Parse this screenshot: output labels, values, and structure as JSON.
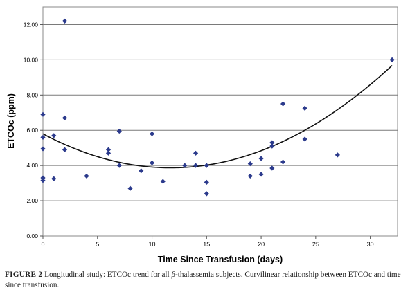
{
  "chart_data": {
    "type": "scatter",
    "xlabel": "Time Since Transfusion (days)",
    "ylabel": "ETCOc (ppm)",
    "xlim": [
      0,
      32.5
    ],
    "ylim": [
      0,
      13
    ],
    "xticks": [
      0,
      5,
      10,
      15,
      20,
      25,
      30
    ],
    "yticks": [
      0,
      2,
      4,
      6,
      8,
      10,
      12
    ],
    "xtick_labels": [
      "0",
      "5",
      "10",
      "15",
      "20",
      "25",
      "30"
    ],
    "ytick_labels": [
      "0.00",
      "2.00",
      "4.00",
      "6.00",
      "8.00",
      "10.00",
      "12.00"
    ],
    "grid": "horizontal",
    "marker": "diamond",
    "marker_color": "#2b3a8c",
    "points": [
      {
        "x": 0,
        "y": 6.9
      },
      {
        "x": 0,
        "y": 5.6
      },
      {
        "x": 0,
        "y": 4.95
      },
      {
        "x": 0,
        "y": 3.3
      },
      {
        "x": 0,
        "y": 3.15
      },
      {
        "x": 1,
        "y": 5.7
      },
      {
        "x": 1,
        "y": 3.25
      },
      {
        "x": 2,
        "y": 12.2
      },
      {
        "x": 2,
        "y": 6.7
      },
      {
        "x": 2,
        "y": 4.9
      },
      {
        "x": 4,
        "y": 3.4
      },
      {
        "x": 6,
        "y": 4.9
      },
      {
        "x": 6,
        "y": 4.7
      },
      {
        "x": 7,
        "y": 5.95
      },
      {
        "x": 7,
        "y": 4.0
      },
      {
        "x": 8,
        "y": 2.7
      },
      {
        "x": 9,
        "y": 3.7
      },
      {
        "x": 10,
        "y": 5.8
      },
      {
        "x": 10,
        "y": 4.15
      },
      {
        "x": 11,
        "y": 3.1
      },
      {
        "x": 13,
        "y": 4.0
      },
      {
        "x": 14,
        "y": 4.7
      },
      {
        "x": 14,
        "y": 4.0
      },
      {
        "x": 15,
        "y": 4.0
      },
      {
        "x": 15,
        "y": 3.05
      },
      {
        "x": 15,
        "y": 2.4
      },
      {
        "x": 19,
        "y": 4.1
      },
      {
        "x": 19,
        "y": 3.4
      },
      {
        "x": 20,
        "y": 4.4
      },
      {
        "x": 20,
        "y": 3.5
      },
      {
        "x": 21,
        "y": 5.3
      },
      {
        "x": 21,
        "y": 5.1
      },
      {
        "x": 21,
        "y": 3.85
      },
      {
        "x": 22,
        "y": 7.5
      },
      {
        "x": 22,
        "y": 4.2
      },
      {
        "x": 24,
        "y": 7.25
      },
      {
        "x": 24,
        "y": 5.5
      },
      {
        "x": 27,
        "y": 4.6
      },
      {
        "x": 32,
        "y": 10.0
      }
    ],
    "trendline": {
      "type": "polynomial",
      "degree": 2,
      "coefficients": [
        5.8,
        -0.33,
        0.0141
      ],
      "x_range": [
        0,
        32
      ]
    }
  },
  "caption": {
    "label": "FIGURE 2",
    "text_before_beta": " Longitudinal study: ETCOc trend for all ",
    "beta": "β",
    "text_after_beta": "-thalassemia subjects. Curvilinear relationship between ETCOc and time since transfusion."
  }
}
